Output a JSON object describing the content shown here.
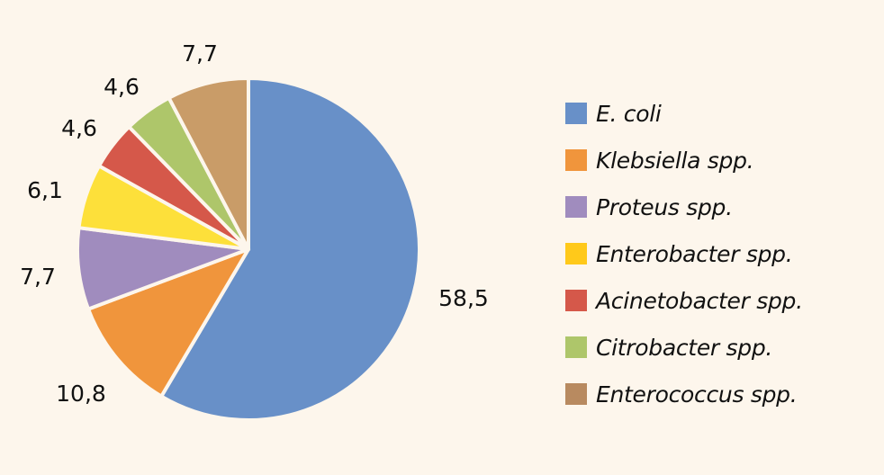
{
  "chart_data": {
    "type": "pie",
    "title": "",
    "start": "top",
    "direction": "clockwise",
    "slices": [
      {
        "name": "E. coli",
        "value": 58.5,
        "label": "58,5",
        "color": "#6890c8"
      },
      {
        "name": "Klebsiella spp.",
        "value": 10.8,
        "label": "10,8",
        "color": "#f0953c"
      },
      {
        "name": "Proteus spp.",
        "value": 7.7,
        "label": "7,7",
        "color": "#a08cbe"
      },
      {
        "name": "Enterobacter spp.",
        "value": 6.1,
        "label": "6,1",
        "color": "#fde03a"
      },
      {
        "name": "Acinetobacter spp.",
        "value": 4.6,
        "label": "4,6",
        "color": "#d5584a"
      },
      {
        "name": "Citrobacter spp.",
        "value": 4.6,
        "label": "4,6",
        "color": "#aec66a"
      },
      {
        "name": "Enterococcus spp.",
        "value": 7.7,
        "label": "7,7",
        "color": "#c99c68"
      }
    ],
    "legend": {
      "position": "right",
      "entries": [
        {
          "label": "E. coli",
          "color": "#6890c8"
        },
        {
          "label": "Klebsiella spp.",
          "color": "#f0953c"
        },
        {
          "label": "Proteus spp.",
          "color": "#a08cbe"
        },
        {
          "label": "Enterobacter spp.",
          "color": "#ffc91a"
        },
        {
          "label": "Acinetobacter spp.",
          "color": "#d5584a"
        },
        {
          "label": "Citrobacter spp.",
          "color": "#aec66a"
        },
        {
          "label": "Enterococcus spp.",
          "color": "#b88a60"
        }
      ]
    }
  }
}
